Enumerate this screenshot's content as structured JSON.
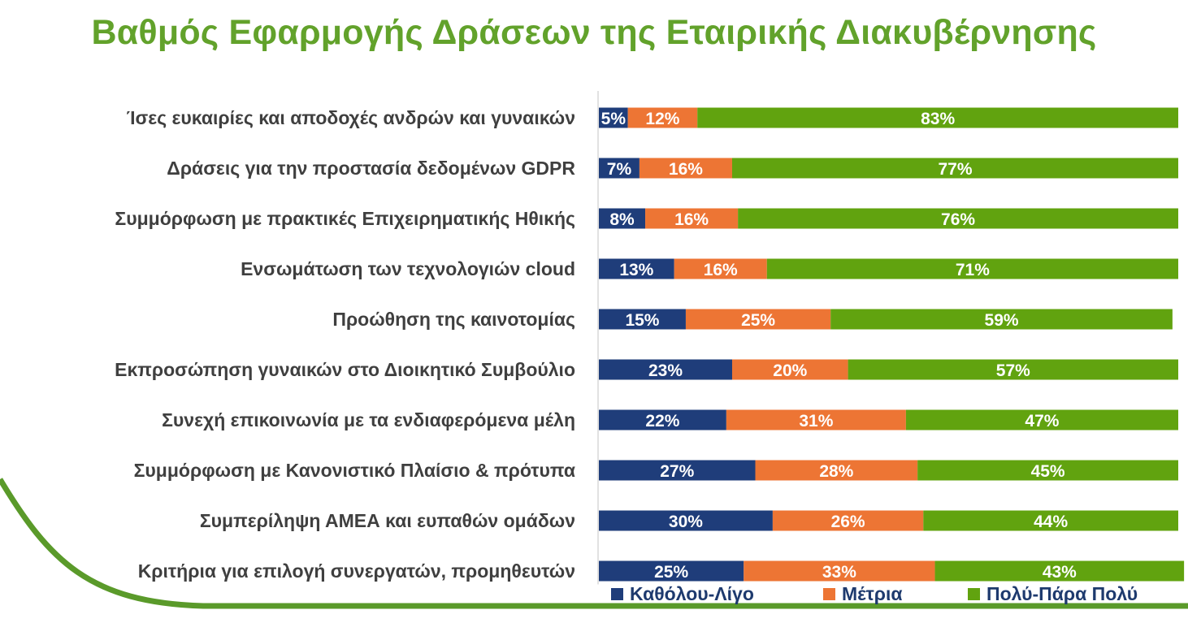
{
  "chart_data": {
    "type": "bar",
    "orientation": "horizontal",
    "stacked": true,
    "title": "Βαθμός Εφαρμογής Δράσεων της Εταιρικής Διακυβέρνησης",
    "categories": [
      "Ίσες ευκαιρίες και αποδοχές ανδρών και γυναικών",
      "Δράσεις για την προστασία δεδομένων GDPR",
      "Συμμόρφωση με πρακτικές Επιχειρηματικής Ηθικής",
      "Ενσωμάτωση των τεχνολογιών cloud",
      "Προώθηση της καινοτομίας",
      "Εκπροσώπηση γυναικών στο Διοικητικό Συμβούλιο",
      "Συνεχή επικοινωνία με τα  ενδιαφερόμενα μέλη",
      "Συμμόρφωση με Κανονιστικό Πλαίσιο & πρότυπα",
      "Συμπερίληψη ΑΜΕΑ και ευπαθών ομάδων",
      "Κριτήρια για επιλογή συνεργατών, προμηθευτών"
    ],
    "series": [
      {
        "name": "Καθόλου-Λίγο",
        "color": "#1f3d7a",
        "values": [
          5,
          7,
          8,
          13,
          15,
          23,
          22,
          27,
          30,
          25
        ]
      },
      {
        "name": "Μέτρια",
        "color": "#ed7534",
        "values": [
          12,
          16,
          16,
          16,
          25,
          20,
          31,
          28,
          26,
          33
        ]
      },
      {
        "name": "Πολύ-Πάρα Πολύ",
        "color": "#61a30f",
        "values": [
          83,
          77,
          76,
          71,
          59,
          57,
          47,
          45,
          44,
          43
        ]
      }
    ],
    "value_suffix": "%",
    "xlim": [
      0,
      100
    ],
    "legend_position": "bottom-right",
    "grid": false
  },
  "decoration": {
    "swoosh_color": "#5a9a2a"
  }
}
